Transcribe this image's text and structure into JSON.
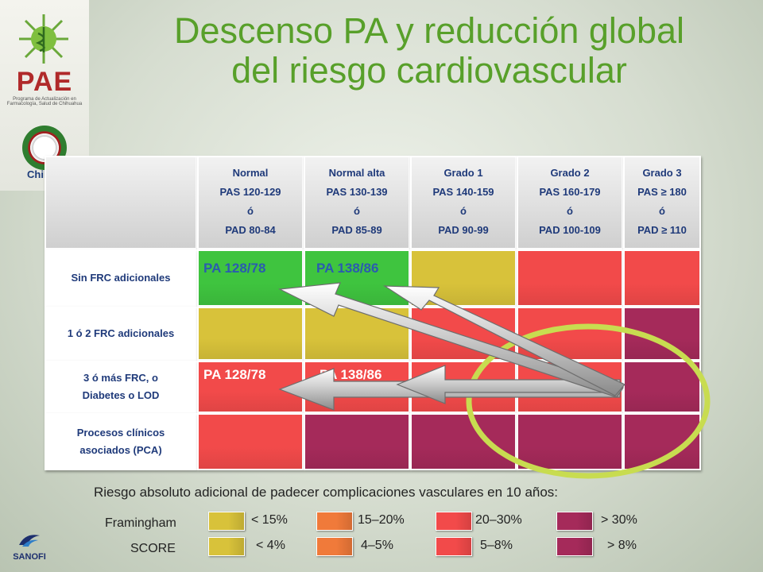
{
  "title": [
    "Descenso PA y reducción global",
    "del riesgo cardiovascular"
  ],
  "logo": {
    "text": "PAE",
    "subtitle": "Programa de Actualización en Farmacología, Salud de Chihuahua",
    "seal_text": "Chihu"
  },
  "columns": [
    {
      "lines": [
        "Normal",
        "PAS 120-129",
        "ó",
        "PAD 80-84"
      ]
    },
    {
      "lines": [
        "Normal alta",
        "PAS 130-139",
        "ó",
        "PAD 85-89"
      ]
    },
    {
      "lines": [
        "Grado 1",
        "PAS 140-159",
        "ó",
        "PAD 90-99"
      ]
    },
    {
      "lines": [
        "Grado 2",
        "PAS 160-179",
        "ó",
        "PAD 100-109"
      ]
    },
    {
      "lines": [
        "Grado 3",
        "PAS ≥ 180",
        "ó",
        "PAD ≥ 110"
      ]
    }
  ],
  "rows": [
    {
      "lines": [
        "Sin FRC adicionales"
      ]
    },
    {
      "lines": [
        "1 ó 2 FRC adicionales"
      ]
    },
    {
      "lines": [
        "3 ó más FRC, o",
        "Diabetes o LOD"
      ]
    },
    {
      "lines": [
        "Procesos clínicos",
        "asociados (PCA)"
      ]
    }
  ],
  "colors": {
    "green": "#3fc43f",
    "yellow": "#d8c23a",
    "orange": "#f07a3a",
    "red": "#f24a4a",
    "maroon": "#a52a5a",
    "accent_ellipse": "#c8dc50"
  },
  "matrix": [
    [
      "green",
      "green",
      "yellow",
      "red",
      "red"
    ],
    [
      "yellow",
      "yellow",
      "red",
      "red",
      "maroon"
    ],
    [
      "red",
      "red",
      "red",
      "red",
      "maroon"
    ],
    [
      "red",
      "maroon",
      "maroon",
      "maroon",
      "maroon"
    ]
  ],
  "annotations": {
    "row1_a": "PA 128/78",
    "row1_b": "PA 138/86",
    "row3_a": "PA 128/78",
    "row3_b": "PA 138/86"
  },
  "legend": {
    "title": "Riesgo absoluto adicional de padecer complicaciones vasculares en 10 años:",
    "framingham_label": "Framingham",
    "score_label": "SCORE",
    "framingham": [
      "< 15%",
      "15–20%",
      "20–30%",
      "> 30%"
    ],
    "score": [
      "< 4%",
      "4–5%",
      "5–8%",
      "> 8%"
    ],
    "swatch_colors": [
      "yellow",
      "orange",
      "red",
      "maroon"
    ]
  },
  "footer": {
    "brand": "SANOFI"
  }
}
